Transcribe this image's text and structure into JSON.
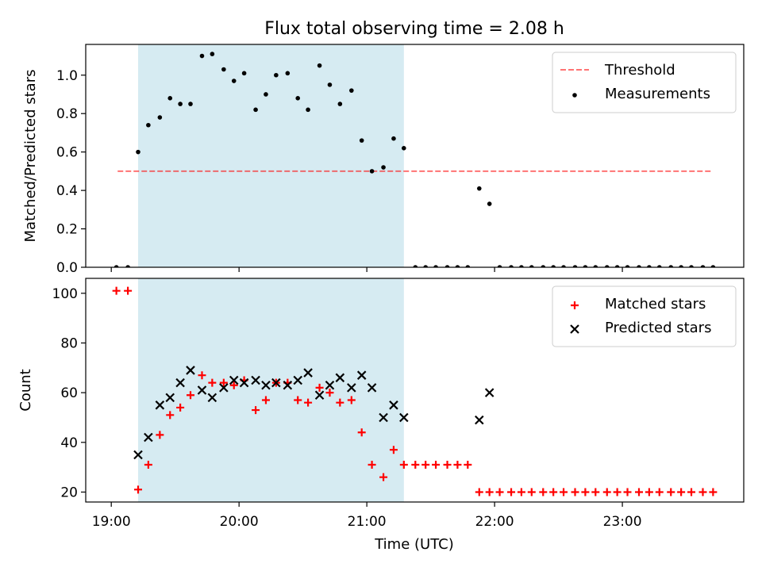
{
  "figure": {
    "title": "Flux total observing time = 2.08 h",
    "xlabel": "Time (UTC)",
    "x_ticks": [
      {
        "value": 19,
        "label": "19:00"
      },
      {
        "value": 20,
        "label": "20:00"
      },
      {
        "value": 21,
        "label": "21:00"
      },
      {
        "value": 22,
        "label": "22:00"
      },
      {
        "value": 23,
        "label": "23:00"
      }
    ],
    "xlim": [
      18.8,
      23.95
    ],
    "highlight_span": [
      19.21,
      21.29
    ],
    "colors": {
      "span": "#add8e6",
      "threshold": "#ff0000",
      "measurements": "#000000",
      "matched": "#ff0000",
      "predicted": "#000000"
    }
  },
  "chart_data": [
    {
      "type": "scatter",
      "ylabel": "Matched/Predicted stars",
      "ylim": [
        0,
        1.16
      ],
      "y_ticks": [
        {
          "value": 0.0,
          "label": "0.0"
        },
        {
          "value": 0.2,
          "label": "0.2"
        },
        {
          "value": 0.4,
          "label": "0.4"
        },
        {
          "value": 0.6,
          "label": "0.6"
        },
        {
          "value": 0.8,
          "label": "0.8"
        },
        {
          "value": 1.0,
          "label": "1.0"
        }
      ],
      "legend": "top-right",
      "series": [
        {
          "name": "Threshold",
          "kind": "dashed-line",
          "x": [
            19.05,
            23.7
          ],
          "y": [
            0.5,
            0.5
          ]
        },
        {
          "name": "Measurements",
          "kind": "dots",
          "x": [
            19.04,
            19.13,
            19.21,
            19.29,
            19.38,
            19.46,
            19.54,
            19.62,
            19.71,
            19.79,
            19.88,
            19.96,
            20.04,
            20.13,
            20.21,
            20.29,
            20.38,
            20.46,
            20.54,
            20.63,
            20.71,
            20.79,
            20.88,
            20.96,
            21.04,
            21.13,
            21.21,
            21.29,
            21.38,
            21.46,
            21.54,
            21.63,
            21.71,
            21.79,
            21.88,
            21.96,
            22.04,
            22.13,
            22.21,
            22.29,
            22.38,
            22.46,
            22.54,
            22.63,
            22.71,
            22.79,
            22.88,
            22.96,
            23.04,
            23.13,
            23.21,
            23.29,
            23.38,
            23.46,
            23.54,
            23.63,
            23.71
          ],
          "y": [
            0.0,
            0.0,
            0.6,
            0.74,
            0.78,
            0.88,
            0.85,
            0.85,
            1.1,
            1.11,
            1.03,
            0.97,
            1.01,
            0.82,
            0.9,
            1.0,
            1.01,
            0.88,
            0.82,
            1.05,
            0.95,
            0.85,
            0.92,
            0.66,
            0.5,
            0.52,
            0.67,
            0.62,
            0.0,
            0.0,
            0.0,
            0.0,
            0.0,
            0.0,
            0.41,
            0.33,
            0.0,
            0.0,
            0.0,
            0.0,
            0.0,
            0.0,
            0.0,
            0.0,
            0.0,
            0.0,
            0.0,
            0.0,
            0.0,
            0.0,
            0.0,
            0.0,
            0.0,
            0.0,
            0.0,
            0.0,
            0.0
          ]
        }
      ]
    },
    {
      "type": "scatter",
      "ylabel": "Count",
      "ylim": [
        16,
        106
      ],
      "y_ticks": [
        {
          "value": 20,
          "label": "20"
        },
        {
          "value": 40,
          "label": "40"
        },
        {
          "value": 60,
          "label": "60"
        },
        {
          "value": 80,
          "label": "80"
        },
        {
          "value": 100,
          "label": "100"
        }
      ],
      "legend": "top-right",
      "series": [
        {
          "name": "Matched stars",
          "kind": "plus",
          "x": [
            19.04,
            19.13,
            19.21,
            19.29,
            19.38,
            19.46,
            19.54,
            19.62,
            19.71,
            19.79,
            19.88,
            19.96,
            20.04,
            20.13,
            20.21,
            20.29,
            20.38,
            20.46,
            20.54,
            20.63,
            20.71,
            20.79,
            20.88,
            20.96,
            21.04,
            21.13,
            21.21,
            21.29,
            21.38,
            21.46,
            21.54,
            21.63,
            21.71,
            21.79,
            21.88,
            21.96,
            22.04,
            22.13,
            22.21,
            22.29,
            22.38,
            22.46,
            22.54,
            22.63,
            22.71,
            22.79,
            22.88,
            22.96,
            23.04,
            23.13,
            23.21,
            23.29,
            23.38,
            23.46,
            23.54,
            23.63,
            23.71
          ],
          "y": [
            101,
            101,
            21,
            31,
            43,
            51,
            54,
            59,
            67,
            64,
            64,
            63,
            65,
            53,
            57,
            64,
            64,
            57,
            56,
            62,
            60,
            56,
            57,
            44,
            31,
            26,
            37,
            31,
            31,
            31,
            31,
            31,
            31,
            31,
            20,
            20,
            20,
            20,
            20,
            20,
            20,
            20,
            20,
            20,
            20,
            20,
            20,
            20,
            20,
            20,
            20,
            20,
            20,
            20,
            20,
            20,
            20
          ]
        },
        {
          "name": "Predicted stars",
          "kind": "x",
          "x": [
            19.21,
            19.29,
            19.38,
            19.46,
            19.54,
            19.62,
            19.71,
            19.79,
            19.88,
            19.96,
            20.04,
            20.13,
            20.21,
            20.29,
            20.38,
            20.46,
            20.54,
            20.63,
            20.71,
            20.79,
            20.88,
            20.96,
            21.04,
            21.13,
            21.21,
            21.29,
            21.88,
            21.96
          ],
          "y": [
            35,
            42,
            55,
            58,
            64,
            69,
            61,
            58,
            62,
            65,
            64,
            65,
            63,
            64,
            63,
            65,
            68,
            59,
            63,
            66,
            62,
            67,
            62,
            50,
            55,
            50,
            49,
            60
          ]
        }
      ]
    }
  ]
}
